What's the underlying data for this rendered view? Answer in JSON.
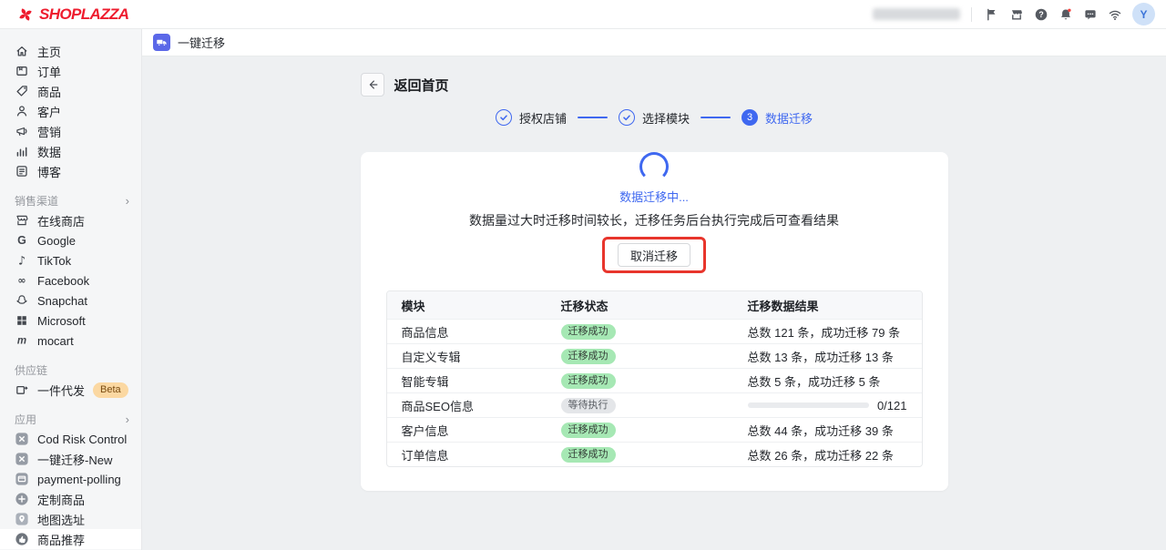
{
  "colors": {
    "brand_red": "#ee1c2e",
    "accent_blue": "#3f68f0",
    "breadcrumb_icon_bg": "#5b68e8",
    "success_pill_bg": "#a6e8b4",
    "pending_pill_bg": "#e4e6e9",
    "annotation_red": "#e8352c",
    "notification_dot": "#f5423e",
    "beta_badge_bg": "#fbd8a2"
  },
  "topbar": {
    "logo_text": "SHOPLAZZA",
    "store_name_obscured": true,
    "icons": [
      {
        "name": "flag-icon"
      },
      {
        "name": "storefront-icon"
      },
      {
        "name": "help-icon"
      },
      {
        "name": "bell-icon"
      },
      {
        "name": "chat-icon"
      },
      {
        "name": "wifi-icon"
      }
    ],
    "avatar_letter": "Y"
  },
  "sidebar": {
    "items": [
      {
        "type": "item",
        "icon": "home-icon",
        "label": "主页"
      },
      {
        "type": "item",
        "icon": "orders-icon",
        "label": "订单"
      },
      {
        "type": "item",
        "icon": "products-icon",
        "label": "商品"
      },
      {
        "type": "item",
        "icon": "customers-icon",
        "label": "客户"
      },
      {
        "type": "item",
        "icon": "marketing-icon",
        "label": "营销"
      },
      {
        "type": "item",
        "icon": "analytics-icon",
        "label": "数据"
      },
      {
        "type": "item",
        "icon": "blog-icon",
        "label": "博客"
      },
      {
        "type": "section",
        "label": "销售渠道",
        "chevron": true
      },
      {
        "type": "item",
        "icon": "online-store-icon",
        "label": "在线商店"
      },
      {
        "type": "item",
        "icon": "google-icon",
        "label": "Google"
      },
      {
        "type": "item",
        "icon": "tiktok-icon",
        "label": "TikTok"
      },
      {
        "type": "item",
        "icon": "meta-icon",
        "label": "Facebook"
      },
      {
        "type": "item",
        "icon": "snapchat-icon",
        "label": "Snapchat"
      },
      {
        "type": "item",
        "icon": "microsoft-icon",
        "label": "Microsoft"
      },
      {
        "type": "item",
        "icon": "mocart-icon",
        "label": "mocart"
      },
      {
        "type": "section",
        "label": "供应链"
      },
      {
        "type": "item",
        "icon": "dropshipping-icon",
        "label": "一件代发",
        "badge": "Beta"
      },
      {
        "type": "section",
        "label": "应用",
        "chevron": true
      },
      {
        "type": "item",
        "icon": "app-cod-icon",
        "label": "Cod Risk Control"
      },
      {
        "type": "item",
        "icon": "app-migrate-icon",
        "label": "一键迁移-New"
      },
      {
        "type": "item",
        "icon": "app-payment-icon",
        "label": "payment-polling"
      },
      {
        "type": "item",
        "icon": "custom-product-icon",
        "label": "定制商品"
      },
      {
        "type": "item",
        "icon": "map-pin-icon",
        "label": "地图选址"
      },
      {
        "type": "item",
        "icon": "thumbs-up-icon",
        "label": "商品推荐",
        "highlight": true
      }
    ]
  },
  "breadcrumb": {
    "app_icon": "truck-icon",
    "title": "一键迁移"
  },
  "page": {
    "back_label": "返回首页",
    "stepper": [
      {
        "label": "授权店铺",
        "state": "done"
      },
      {
        "label": "选择模块",
        "state": "done"
      },
      {
        "label": "数据迁移",
        "state": "active",
        "number": "3"
      }
    ],
    "status_text": "数据迁移中...",
    "description": "数据量过大时迁移时间较长，迁移任务后台执行完成后可查看结果",
    "cancel_button": "取消迁移",
    "table": {
      "headers": [
        "模块",
        "迁移状态",
        "迁移数据结果"
      ],
      "rows": [
        {
          "module": "商品信息",
          "status": "迁移成功",
          "status_type": "success",
          "result": "总数 121 条，成功迁移 79 条"
        },
        {
          "module": "自定义专辑",
          "status": "迁移成功",
          "status_type": "success",
          "result": "总数 13 条，成功迁移 13 条"
        },
        {
          "module": "智能专辑",
          "status": "迁移成功",
          "status_type": "success",
          "result": "总数 5 条，成功迁移 5 条"
        },
        {
          "module": "商品SEO信息",
          "status": "等待执行",
          "status_type": "pending",
          "progress": "0/121"
        },
        {
          "module": "客户信息",
          "status": "迁移成功",
          "status_type": "success",
          "result": "总数 44 条，成功迁移 39 条"
        },
        {
          "module": "订单信息",
          "status": "迁移成功",
          "status_type": "success",
          "result": "总数 26 条，成功迁移 22 条"
        }
      ]
    }
  }
}
